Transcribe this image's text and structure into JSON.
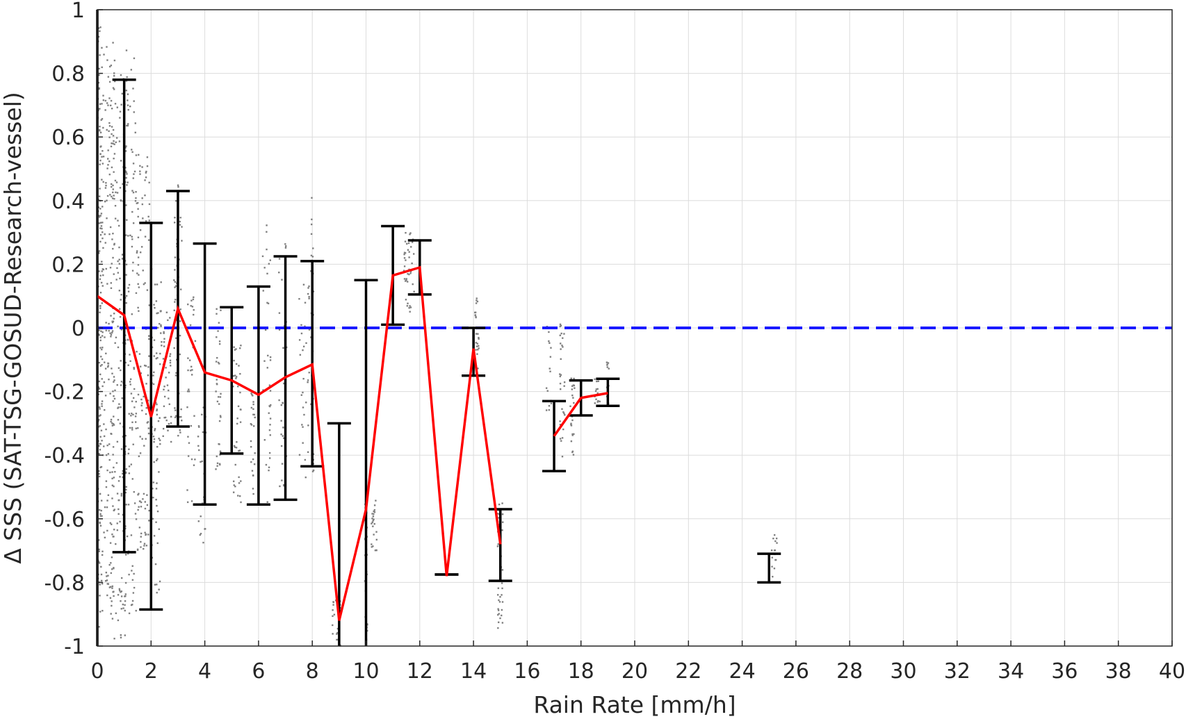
{
  "chart_data": {
    "type": "line",
    "xlabel": "Rain Rate [mm/h]",
    "ylabel": "Δ SSS (SAT-TSG-GOSUD-Research-vessel)",
    "xlim": [
      0,
      40
    ],
    "ylim": [
      -1,
      1
    ],
    "xticks": [
      0,
      2,
      4,
      6,
      8,
      10,
      12,
      14,
      16,
      18,
      20,
      22,
      24,
      26,
      28,
      30,
      32,
      34,
      36,
      38,
      40
    ],
    "xtick_labels": [
      "0",
      "2",
      "4",
      "6",
      "8",
      "10",
      "12",
      "14",
      "16",
      "18",
      "20",
      "22",
      "24",
      "26",
      "28",
      "30",
      "32",
      "34",
      "36",
      "38",
      "40"
    ],
    "yticks": [
      -1,
      -0.8,
      -0.6,
      -0.4,
      -0.2,
      0,
      0.2,
      0.4,
      0.6,
      0.8,
      1
    ],
    "ytick_labels": [
      "-1",
      "-0.8",
      "-0.6",
      "-0.4",
      "-0.2",
      "0",
      "0.2",
      "0.4",
      "0.6",
      "0.8",
      "1"
    ],
    "grid": true,
    "reference_line": {
      "y": 0,
      "style": "dashed",
      "color": "#1a1aff"
    },
    "mean_line_color": "#ff0000",
    "errorbar_color": "#000000",
    "scatter_color": "#808080",
    "mean_segments": [
      [
        {
          "x": 0,
          "y": 0.1
        },
        {
          "x": 1,
          "y": 0.04
        },
        {
          "x": 2,
          "y": -0.28
        },
        {
          "x": 3,
          "y": 0.06
        },
        {
          "x": 4,
          "y": -0.14
        },
        {
          "x": 5,
          "y": -0.165
        },
        {
          "x": 6,
          "y": -0.21
        },
        {
          "x": 7,
          "y": -0.155
        },
        {
          "x": 8,
          "y": -0.115
        },
        {
          "x": 9,
          "y": -0.92
        },
        {
          "x": 10,
          "y": -0.57
        },
        {
          "x": 11,
          "y": 0.165
        },
        {
          "x": 12,
          "y": 0.19
        },
        {
          "x": 13,
          "y": -0.78
        },
        {
          "x": 14,
          "y": -0.065
        },
        {
          "x": 15,
          "y": -0.68
        }
      ],
      [
        {
          "x": 17,
          "y": -0.34
        },
        {
          "x": 18,
          "y": -0.22
        },
        {
          "x": 19,
          "y": -0.205
        }
      ]
    ],
    "error_bars": [
      {
        "x": 0,
        "low": -1.0,
        "high": 1.0
      },
      {
        "x": 1,
        "low": -0.705,
        "high": 0.78
      },
      {
        "x": 2,
        "low": -0.885,
        "high": 0.33
      },
      {
        "x": 3,
        "low": -0.31,
        "high": 0.43
      },
      {
        "x": 4,
        "low": -0.555,
        "high": 0.265
      },
      {
        "x": 5,
        "low": -0.395,
        "high": 0.065
      },
      {
        "x": 6,
        "low": -0.555,
        "high": 0.13
      },
      {
        "x": 7,
        "low": -0.54,
        "high": 0.225
      },
      {
        "x": 8,
        "low": -0.435,
        "high": 0.21
      },
      {
        "x": 9,
        "low": -1.0,
        "high": -0.3
      },
      {
        "x": 10,
        "low": -1.0,
        "high": 0.15
      },
      {
        "x": 11,
        "low": 0.01,
        "high": 0.32
      },
      {
        "x": 12,
        "low": 0.105,
        "high": 0.275
      },
      {
        "x": 13,
        "low": -0.775,
        "high": -0.775
      },
      {
        "x": 14,
        "low": -0.15,
        "high": 0.0
      },
      {
        "x": 15,
        "low": -0.795,
        "high": -0.57
      },
      {
        "x": 17,
        "low": -0.45,
        "high": -0.23
      },
      {
        "x": 18,
        "low": -0.275,
        "high": -0.165
      },
      {
        "x": 19,
        "low": -0.245,
        "high": -0.16
      },
      {
        "x": 25,
        "low": -0.8,
        "high": -0.71
      }
    ],
    "scatter_clusters": [
      {
        "x": 0.0,
        "x_spread": 0.2,
        "y_min": -0.95,
        "y_max": 0.95,
        "n": 230
      },
      {
        "x": 0.35,
        "x_spread": 0.3,
        "y_min": -0.85,
        "y_max": 0.9,
        "n": 200
      },
      {
        "x": 0.8,
        "x_spread": 0.3,
        "y_min": -0.98,
        "y_max": 0.85,
        "n": 190
      },
      {
        "x": 1.2,
        "x_spread": 0.25,
        "y_min": -0.9,
        "y_max": 0.88,
        "n": 140
      },
      {
        "x": 1.7,
        "x_spread": 0.25,
        "y_min": -0.7,
        "y_max": 0.55,
        "n": 110
      },
      {
        "x": 2.2,
        "x_spread": 0.2,
        "y_min": -0.85,
        "y_max": 0.2,
        "n": 80
      },
      {
        "x": 2.6,
        "x_spread": 0.15,
        "y_min": -0.4,
        "y_max": 0.05,
        "n": 40
      },
      {
        "x": 3.0,
        "x_spread": 0.15,
        "y_min": -0.35,
        "y_max": 0.45,
        "n": 55
      },
      {
        "x": 3.5,
        "x_spread": 0.15,
        "y_min": -0.55,
        "y_max": 0.1,
        "n": 35
      },
      {
        "x": 3.9,
        "x_spread": 0.15,
        "y_min": -0.7,
        "y_max": -0.25,
        "n": 25
      },
      {
        "x": 4.5,
        "x_spread": 0.1,
        "y_min": -0.45,
        "y_max": 0.08,
        "n": 35
      },
      {
        "x": 5.2,
        "x_spread": 0.15,
        "y_min": -0.55,
        "y_max": -0.05,
        "n": 40
      },
      {
        "x": 5.8,
        "x_spread": 0.1,
        "y_min": -0.55,
        "y_max": -0.2,
        "n": 25
      },
      {
        "x": 6.3,
        "x_spread": 0.15,
        "y_min": -0.55,
        "y_max": 0.35,
        "n": 35
      },
      {
        "x": 6.9,
        "x_spread": 0.15,
        "y_min": -0.58,
        "y_max": 0.35,
        "n": 35
      },
      {
        "x": 7.7,
        "x_spread": 0.2,
        "y_min": -0.48,
        "y_max": 0.15,
        "n": 35
      },
      {
        "x": 8.0,
        "x_spread": 0.05,
        "y_min": -0.5,
        "y_max": 0.45,
        "n": 35
      },
      {
        "x": 8.9,
        "x_spread": 0.15,
        "y_min": -1.0,
        "y_max": -0.85,
        "n": 25
      },
      {
        "x": 10.0,
        "x_spread": 0.05,
        "y_min": -1.0,
        "y_max": -0.55,
        "n": 35
      },
      {
        "x": 10.3,
        "x_spread": 0.1,
        "y_min": -0.7,
        "y_max": -0.5,
        "n": 25
      },
      {
        "x": 11.6,
        "x_spread": 0.2,
        "y_min": 0.05,
        "y_max": 0.3,
        "n": 40
      },
      {
        "x": 14.1,
        "x_spread": 0.1,
        "y_min": -0.15,
        "y_max": 0.1,
        "n": 30
      },
      {
        "x": 15.0,
        "x_spread": 0.1,
        "y_min": -0.95,
        "y_max": -0.55,
        "n": 45
      },
      {
        "x": 16.8,
        "x_spread": 0.1,
        "y_min": -0.3,
        "y_max": 0.02,
        "n": 15
      },
      {
        "x": 17.3,
        "x_spread": 0.1,
        "y_min": -0.42,
        "y_max": 0.03,
        "n": 30
      },
      {
        "x": 17.7,
        "x_spread": 0.1,
        "y_min": -0.4,
        "y_max": -0.15,
        "n": 25
      },
      {
        "x": 18.6,
        "x_spread": 0.1,
        "y_min": -0.25,
        "y_max": -0.15,
        "n": 15
      },
      {
        "x": 19.0,
        "x_spread": 0.05,
        "y_min": -0.25,
        "y_max": -0.1,
        "n": 15
      },
      {
        "x": 25.2,
        "x_spread": 0.1,
        "y_min": -0.8,
        "y_max": -0.65,
        "n": 15
      }
    ]
  }
}
